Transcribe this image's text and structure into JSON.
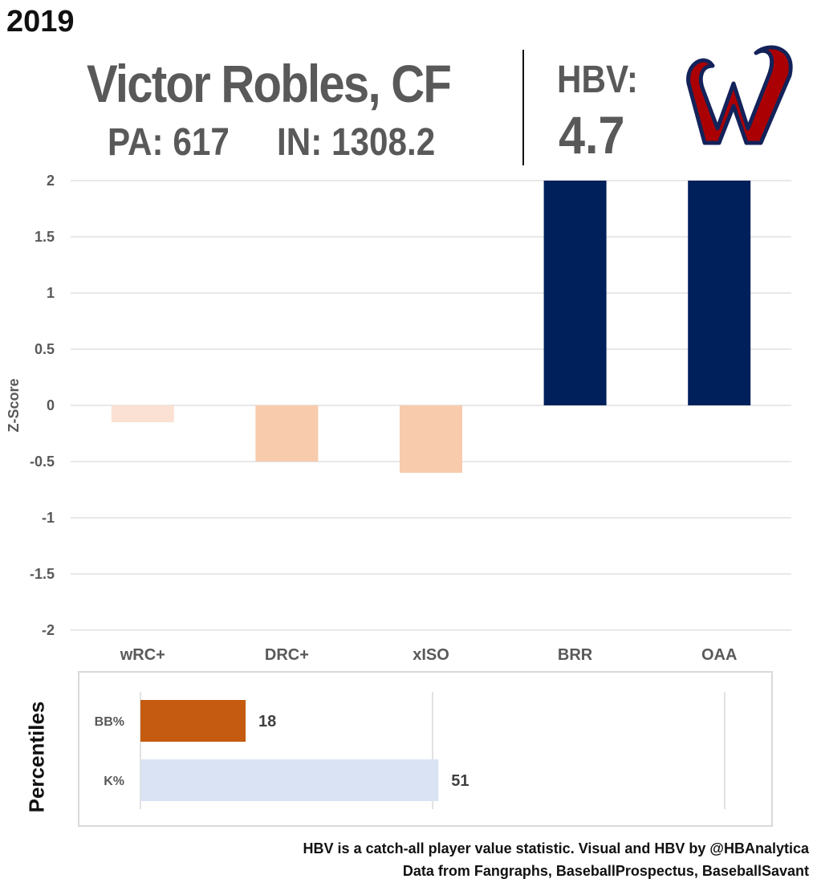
{
  "header": {
    "year": "2019",
    "player_name": "Victor Robles, CF",
    "pa_text": "PA: 617",
    "in_text": "IN: 1308.2",
    "hbv_label": "HBV:",
    "hbv_value": "4.7",
    "logo_icon": "nationals-w-logo"
  },
  "colors": {
    "positive": "#00205b",
    "negative_dark": "#f7cbac",
    "negative_light": "#fbe1d3",
    "bb_bar": "#c55a11",
    "k_bar": "#dae3f3",
    "logo_red": "#ab0003",
    "logo_navy": "#14225a"
  },
  "chart_data": [
    {
      "type": "bar",
      "categories": [
        "wRC+",
        "DRC+",
        "xISO",
        "BRR",
        "OAA"
      ],
      "values": [
        -0.15,
        -0.5,
        -0.6,
        2.0,
        2.0
      ],
      "ylabel": "Z-Score",
      "ylim": [
        -2,
        2
      ],
      "yticks": [
        "-2",
        "-1.5",
        "-1",
        "-0.5",
        "0",
        "0.5",
        "1",
        "1.5",
        "2"
      ],
      "grid": true
    },
    {
      "type": "bar",
      "orientation": "horizontal",
      "title": "Percentiles",
      "categories": [
        "BB%",
        "K%"
      ],
      "values": [
        18,
        51
      ],
      "xlim": [
        0,
        100
      ],
      "data_labels": [
        "18",
        "51"
      ]
    }
  ],
  "footer": {
    "line1": "HBV is a catch-all player value statistic. Visual and HBV by @HBAnalytica",
    "line2": "Data from Fangraphs, BaseballProspectus, BaseballSavant"
  }
}
